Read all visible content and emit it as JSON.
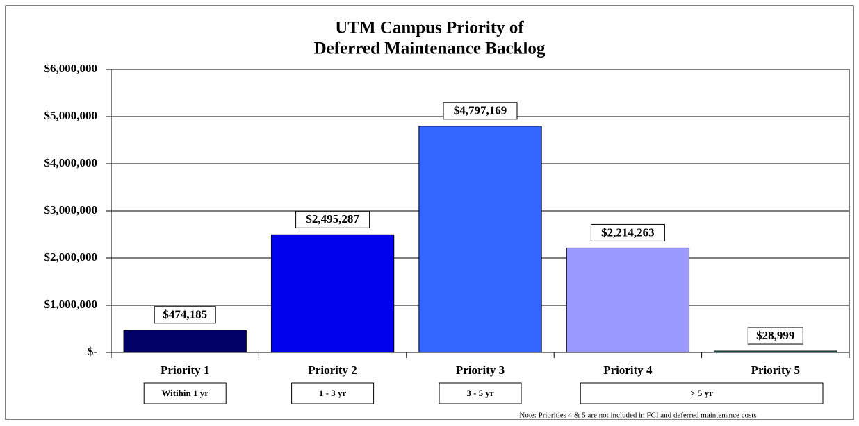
{
  "chart_data": {
    "type": "bar",
    "title": [
      "UTM Campus Priority of",
      "Deferred Maintenance Backlog"
    ],
    "categories": [
      "Priority 1",
      "Priority 2",
      "Priority 3",
      "Priority 4",
      "Priority 5"
    ],
    "values": [
      474185,
      2495287,
      4797169,
      2214263,
      28999
    ],
    "value_labels": [
      "$474,185",
      "$2,495,287",
      "$4,797,169",
      "$2,214,263",
      "$28,999"
    ],
    "colors": [
      "#000066",
      "#0000ee",
      "#3366ff",
      "#9999ff",
      "#339999"
    ],
    "period_labels": [
      "Witihin 1 yr",
      "1 - 3 yr",
      "3 - 5 yr",
      "> 5 yr"
    ],
    "note": "Note: Priorities 4 & 5 are not included in FCI and deferred maintenance costs",
    "ylim": [
      0,
      6000000
    ],
    "yticks": [
      {
        "value": 0,
        "label": "$-"
      },
      {
        "value": 1000000,
        "label": "$1,000,000"
      },
      {
        "value": 2000000,
        "label": "$2,000,000"
      },
      {
        "value": 3000000,
        "label": "$3,000,000"
      },
      {
        "value": 4000000,
        "label": "$4,000,000"
      },
      {
        "value": 5000000,
        "label": "$5,000,000"
      },
      {
        "value": 6000000,
        "label": "$6,000,000"
      }
    ],
    "grid": true
  }
}
